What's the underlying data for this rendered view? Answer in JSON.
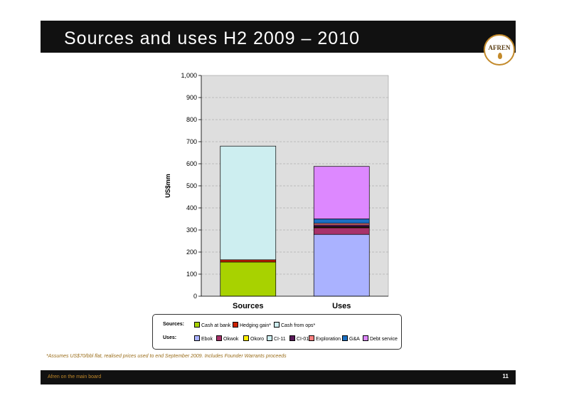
{
  "slide": {
    "title": "Sources and uses H2 2009 – 2010",
    "logo_text": "AFREN",
    "footnote": "*Assumes US$70/bbl flat, realised prices used to end September 2009. Includes Founder Warrants proceeds",
    "footer_left": "Afren on the main board",
    "page_number": "11"
  },
  "legend": {
    "sources_label": "Sources:",
    "uses_label": "Uses:"
  },
  "chart_data": {
    "type": "bar",
    "stacked": true,
    "categories": [
      "Sources",
      "Uses"
    ],
    "ylabel": "US$mm",
    "ylim": [
      0,
      1000
    ],
    "yticks": [
      "0",
      "100",
      "200",
      "300",
      "400",
      "500",
      "600",
      "700",
      "800",
      "900",
      "1,000"
    ],
    "grid": true,
    "series": [
      {
        "name": "Cash at bank",
        "group": "Sources",
        "color": "#a8d200",
        "values": [
          155,
          0
        ]
      },
      {
        "name": "Hedging gain*",
        "group": "Sources",
        "color": "#cc2200",
        "values": [
          10,
          0
        ]
      },
      {
        "name": "Cash from ops*",
        "group": "Sources",
        "color": "#cdeef0",
        "values": [
          515,
          0
        ]
      },
      {
        "name": "Ebok",
        "group": "Uses",
        "color": "#aab2ff",
        "values": [
          0,
          280
        ]
      },
      {
        "name": "Okwok",
        "group": "Uses",
        "color": "#a8326a",
        "values": [
          0,
          30
        ]
      },
      {
        "name": "Okoro",
        "group": "Uses",
        "color": "#ffee00",
        "values": [
          0,
          3
        ]
      },
      {
        "name": "CI-11",
        "group": "Uses",
        "color": "#cdeef0",
        "values": [
          0,
          2
        ]
      },
      {
        "name": "CI-01",
        "group": "Uses",
        "color": "#5a1a5a",
        "values": [
          0,
          8
        ]
      },
      {
        "name": "Exploration",
        "group": "Uses",
        "color": "#ff8080",
        "values": [
          0,
          7
        ]
      },
      {
        "name": "G&A",
        "group": "Uses",
        "color": "#1b6fc2",
        "values": [
          0,
          20
        ]
      },
      {
        "name": "Debt service",
        "group": "Uses",
        "color": "#dd88ff",
        "values": [
          0,
          238
        ]
      }
    ]
  }
}
